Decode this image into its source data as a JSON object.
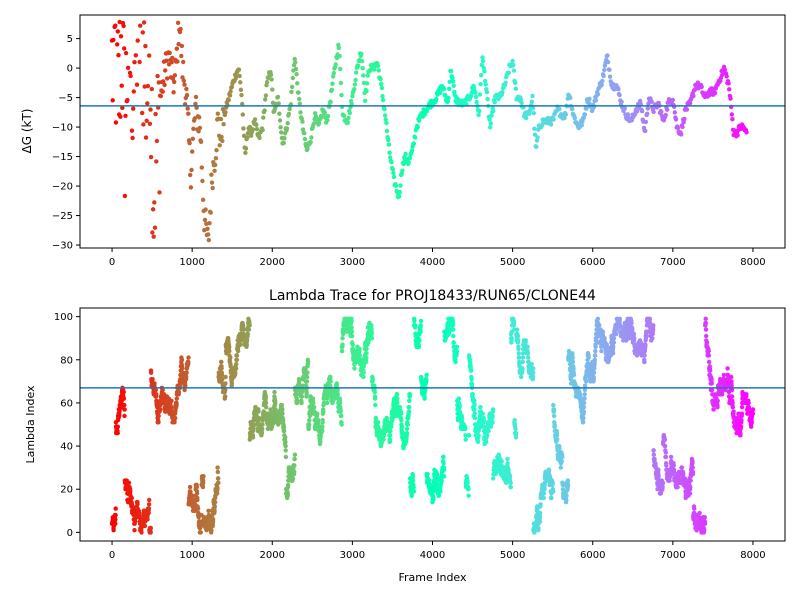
{
  "chart_data": [
    {
      "type": "scatter",
      "title": "",
      "xlabel": "",
      "ylabel": "ΔG (kT)",
      "xlim": [
        -400,
        8400
      ],
      "ylim": [
        -30.5,
        9
      ],
      "xticks": [
        0,
        1000,
        2000,
        3000,
        4000,
        5000,
        6000,
        7000,
        8000
      ],
      "xtick_labels": [
        "0",
        "1000",
        "2000",
        "3000",
        "4000",
        "5000",
        "6000",
        "7000",
        "8000"
      ],
      "yticks": [
        5,
        0,
        -5,
        -10,
        -15,
        -20,
        -25,
        -30
      ],
      "ytick_labels": [
        "5",
        "0",
        "−5",
        "−10",
        "−15",
        "−20",
        "−25",
        "−30"
      ],
      "reference_line": -6.4,
      "colormap": "rainbow (red at frame 0 → violet at frame 8000)",
      "grid": false,
      "trace_x": [
        0,
        40,
        80,
        120,
        160,
        200,
        260,
        330,
        400,
        430,
        470,
        520,
        600,
        700,
        780,
        840,
        880,
        930,
        980,
        1040,
        1100,
        1150,
        1200,
        1250,
        1290,
        1320,
        1350,
        1400,
        1460,
        1520,
        1580,
        1620,
        1660,
        1700,
        1740,
        1780,
        1830,
        1880,
        1930,
        1980,
        2020,
        2070,
        2130,
        2180,
        2230,
        2280,
        2330,
        2380,
        2430,
        2480,
        2530,
        2580,
        2630,
        2680,
        2730,
        2780,
        2830,
        2880,
        2940,
        3000,
        3060,
        3110,
        3160,
        3210,
        3260,
        3310,
        3360,
        3410,
        3460,
        3520,
        3580,
        3620,
        3660,
        3700,
        3750,
        3800,
        3860,
        3920,
        3980,
        4050,
        4120,
        4190,
        4230,
        4280,
        4340,
        4400,
        4460,
        4520,
        4580,
        4620,
        4660,
        4720,
        4780,
        4840,
        4900,
        4960,
        5000,
        5050,
        5100,
        5150,
        5200,
        5250,
        5290,
        5330,
        5380,
        5440,
        5500,
        5560,
        5620,
        5660,
        5700,
        5760,
        5820,
        5880,
        5940,
        6000,
        6060,
        6120,
        6180,
        6240,
        6300,
        6360,
        6420,
        6480,
        6540,
        6600,
        6650,
        6700,
        6760,
        6820,
        6880,
        6940,
        7000,
        7050,
        7100,
        7160,
        7220,
        7280,
        7340,
        7400,
        7460,
        7520,
        7580,
        7640,
        7700,
        7760,
        7800,
        7840,
        7880,
        7920,
        7960,
        8000
      ],
      "trace_y": [
        0,
        2,
        -5,
        5,
        -10,
        4,
        -2,
        8,
        2,
        -6,
        6,
        -22,
        -5,
        2,
        -3,
        8,
        0,
        -5,
        -18,
        -7,
        -10,
        -25,
        -30,
        -18,
        -14,
        -9,
        -12,
        -8,
        -5,
        -2,
        0,
        -5,
        -15,
        -10,
        -11,
        -9,
        -12,
        -10,
        -3,
        0,
        -8,
        -5,
        -13,
        -10,
        -6,
        2,
        -5,
        -10,
        -14,
        -12,
        -8,
        -10,
        -7,
        -9,
        -5,
        0,
        4,
        -8,
        -9,
        -5,
        0,
        3,
        -5,
        0,
        0,
        1,
        -3,
        -8,
        -14,
        -19,
        -22,
        -17,
        -15,
        -16,
        -14,
        -10,
        -8,
        -7,
        -6,
        -5,
        -3,
        -6,
        0,
        -5,
        -6,
        -6,
        -5,
        -3,
        -8,
        2,
        -2,
        -10,
        -5,
        -5,
        -3,
        0,
        1,
        -5,
        -5,
        -8,
        -8,
        -5,
        -14,
        -10,
        -9,
        -9,
        -9,
        -7,
        -8,
        -8,
        -4,
        -8,
        -10,
        -9,
        -5,
        -7,
        -4,
        -2,
        2,
        -3,
        -3,
        -6,
        -8,
        -9,
        -7,
        -6,
        -11,
        -5,
        -7,
        -6,
        -9,
        -6,
        -5,
        -10,
        -11,
        -7,
        -6,
        -3,
        -3,
        -5,
        -4,
        -4,
        -2,
        0,
        -3,
        -11,
        -11,
        -10,
        -10,
        -11
      ]
    },
    {
      "type": "scatter",
      "title": "Lambda Trace for PROJ18433/RUN65/CLONE44",
      "xlabel": "Frame Index",
      "ylabel": "Lambda Index",
      "xlim": [
        -400,
        8400
      ],
      "ylim": [
        -4,
        104
      ],
      "xticks": [
        0,
        1000,
        2000,
        3000,
        4000,
        5000,
        6000,
        7000,
        8000
      ],
      "xtick_labels": [
        "0",
        "1000",
        "2000",
        "3000",
        "4000",
        "5000",
        "6000",
        "7000",
        "8000"
      ],
      "yticks": [
        0,
        20,
        40,
        60,
        80,
        100
      ],
      "ytick_labels": [
        "0",
        "20",
        "40",
        "60",
        "80",
        "100"
      ],
      "reference_line": 67,
      "colormap": "rainbow (red at frame 0 → violet at frame 8000)",
      "grid": false
    }
  ]
}
